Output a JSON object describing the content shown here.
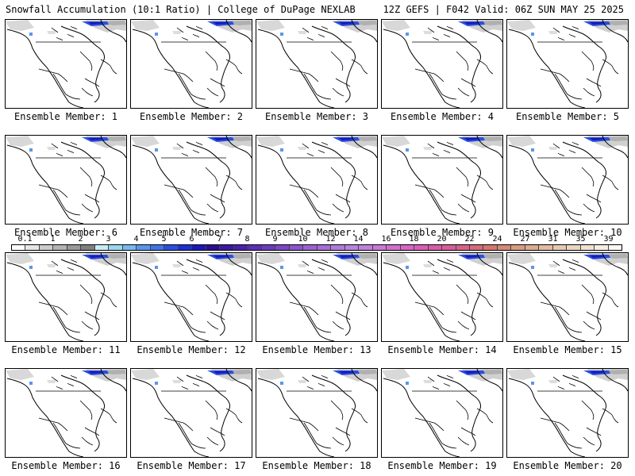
{
  "header": {
    "title_left": "Snowfall Accumulation (10:1 Ratio) | College of DuPage NEXLAB",
    "title_right": "12Z GEFS | F042 Valid: 06Z SUN MAY 25 2025"
  },
  "members": [
    "Ensemble Member: 1",
    "Ensemble Member: 2",
    "Ensemble Member: 3",
    "Ensemble Member: 4",
    "Ensemble Member: 5",
    "Ensemble Member: 6",
    "Ensemble Member: 7",
    "Ensemble Member: 8",
    "Ensemble Member: 9",
    "Ensemble Member: 10",
    "Ensemble Member: 11",
    "Ensemble Member: 12",
    "Ensemble Member: 13",
    "Ensemble Member: 14",
    "Ensemble Member: 15",
    "Ensemble Member: 16",
    "Ensemble Member: 17",
    "Ensemble Member: 18",
    "Ensemble Member: 19",
    "Ensemble Member: 20"
  ],
  "legend": {
    "labels": [
      "0.1",
      "1",
      "2",
      "3",
      "4",
      "5",
      "6",
      "7",
      "8",
      "9",
      "10",
      "12",
      "14",
      "16",
      "18",
      "20",
      "22",
      "24",
      "27",
      "31",
      "35",
      "39"
    ],
    "colors": [
      "#ffffff",
      "#e6e6e6",
      "#cccccc",
      "#b3b3b3",
      "#999999",
      "#7f7f7f",
      "#c8ecf6",
      "#9ad7ee",
      "#7ab8ee",
      "#5a96ea",
      "#3e74e6",
      "#2a4fe0",
      "#1d2fd6",
      "#1a1ab8",
      "#2b0f8f",
      "#3b1aa0",
      "#4a22ac",
      "#5a2eb5",
      "#6a3cbd",
      "#7a48c4",
      "#8a55cb",
      "#9a62d1",
      "#a46ed6",
      "#ae7bdb",
      "#b585de",
      "#c081dc",
      "#c978d6",
      "#d06fce",
      "#d566c3",
      "#d85eb5",
      "#d95ba8",
      "#d85d98",
      "#d56388",
      "#d36b7a",
      "#d3776e",
      "#d48a74",
      "#d89b82",
      "#dcab92",
      "#e1bba3",
      "#e6c9b3",
      "#ebd6c3",
      "#f0e2d3",
      "#f6eee6",
      "#fbf8f4"
    ]
  }
}
